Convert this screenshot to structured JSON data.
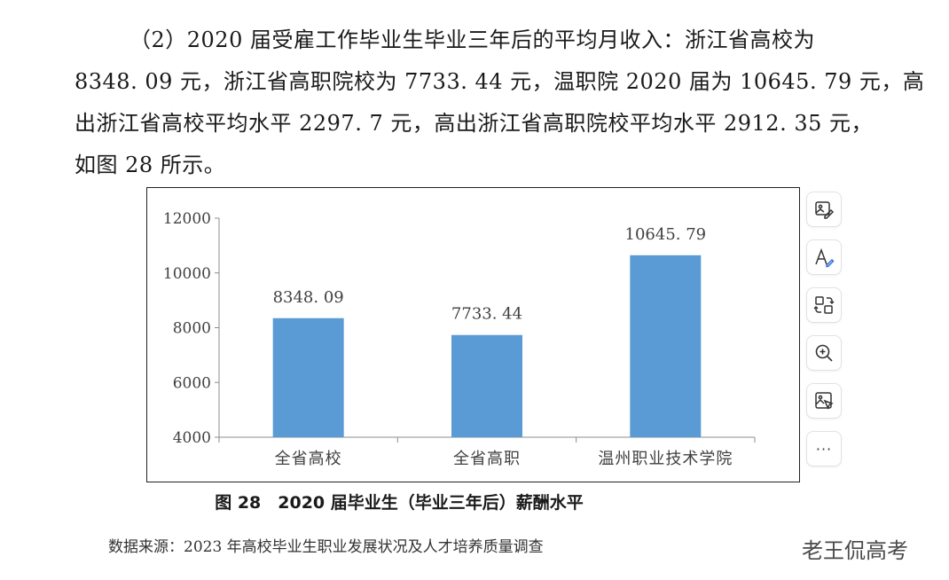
{
  "paragraph": {
    "lines": [
      "（2）2020 届受雇工作毕业生毕业三年后的平均月收入：浙江省高校为",
      "8348. 09 元，浙江省高职院校为 7733. 44 元，温职院 2020 届为 10645. 79 元，高",
      "出浙江省高校平均水平 2297. 7 元，高出浙江省高职院校平均水平 2912. 35 元，",
      "如图 28 所示。"
    ]
  },
  "chart_data": {
    "type": "bar",
    "categories": [
      "全省高校",
      "全省高职",
      "温州职业技术学院"
    ],
    "values": [
      8348.09,
      7733.44,
      10645.79
    ],
    "data_labels": [
      "8348. 09",
      "7733. 44",
      "10645. 79"
    ],
    "title": "",
    "xlabel": "",
    "ylabel": "",
    "ylim": [
      4000,
      12000
    ],
    "yticks": [
      4000,
      6000,
      8000,
      10000,
      12000
    ],
    "ytick_labels": [
      "4000",
      "6000",
      "8000",
      "10000",
      "12000"
    ],
    "grid": false,
    "legend": "none",
    "bar_color": "#5b9bd5",
    "axis_color": "#8c8c8c"
  },
  "caption": "图 28　2020 届毕业生（毕业三年后）薪酬水平",
  "source": "数据来源：2023 年高校毕业生职业发展状况及人才培养质量调查",
  "watermark": "老王侃高考",
  "toolbar": {
    "items": [
      {
        "icon": "image-edit-icon"
      },
      {
        "icon": "text-edit-icon"
      },
      {
        "icon": "replace-icon"
      },
      {
        "icon": "zoom-in-icon"
      },
      {
        "icon": "image-select-icon"
      },
      {
        "icon": "more-icon",
        "label": "···"
      }
    ]
  }
}
